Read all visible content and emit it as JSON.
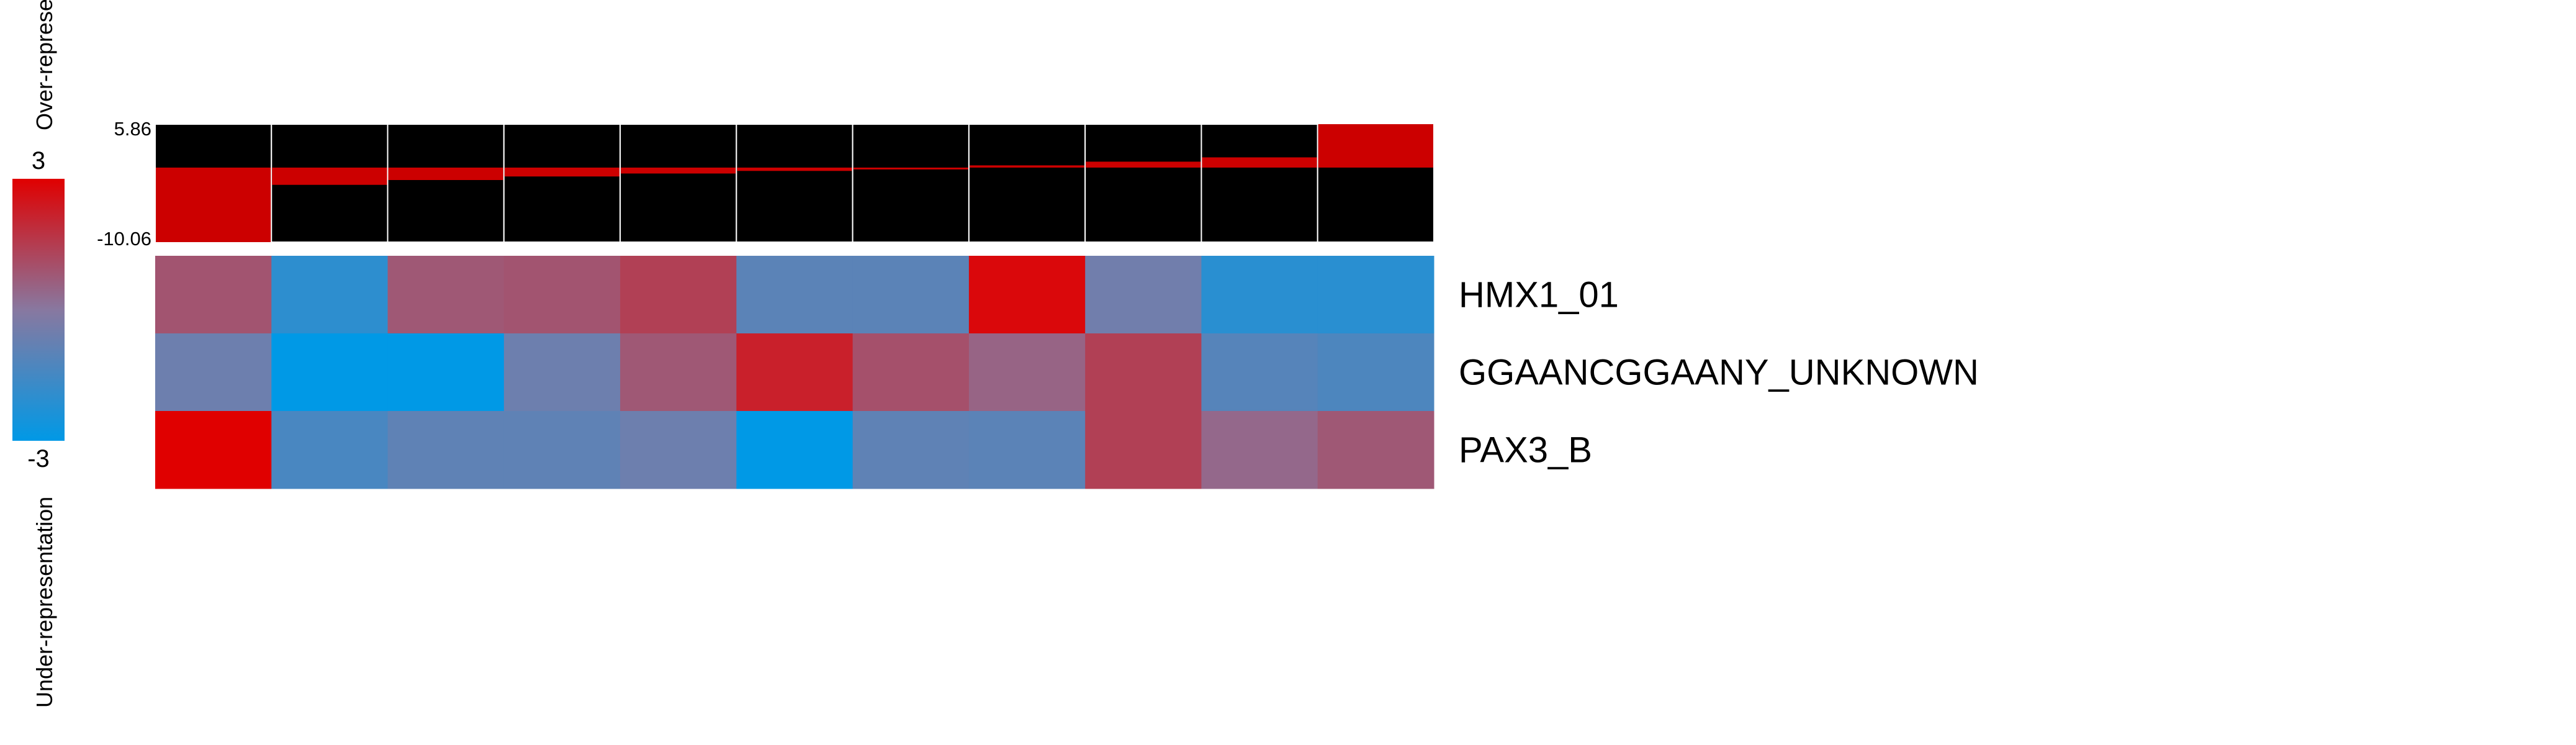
{
  "chart_data": {
    "type": "heatmap",
    "rows": [
      "HMX1_01",
      "GGAANCGGAANY_UNKNOWN",
      "PAX3_B"
    ],
    "columns": 11,
    "values": [
      [
        0.9,
        -2.0,
        0.8,
        0.9,
        1.4,
        -1.0,
        -1.0,
        2.8,
        -0.5,
        -2.1,
        -2.1
      ],
      [
        -0.6,
        -3.0,
        -3.0,
        -0.6,
        0.8,
        2.2,
        1.0,
        0.5,
        1.4,
        -1.1,
        -1.3
      ],
      [
        3.0,
        -1.4,
        -0.9,
        -0.9,
        -0.6,
        -3.0,
        -0.9,
        -1.0,
        1.4,
        0.4,
        0.8
      ]
    ],
    "color_scale": {
      "min": -3,
      "max": 3,
      "low_color": "#0099e6",
      "mid_color": "#8878a0",
      "high_color": "#e00000"
    },
    "top_profile": {
      "ymax_label": "5.86",
      "ymin_label": "-10.06",
      "ymax": 5.86,
      "ymin": -10.06,
      "values": [
        -10.06,
        -2.33,
        -1.68,
        -1.2,
        -0.8,
        -0.45,
        -0.05,
        0.3,
        0.8,
        1.38,
        5.86
      ],
      "bar_color": "#cc0000",
      "background_color": "#000000"
    },
    "legend": {
      "max_label": "3",
      "min_label": "-3",
      "over_label": "Over-representation",
      "under_label": "Under-representation"
    }
  }
}
